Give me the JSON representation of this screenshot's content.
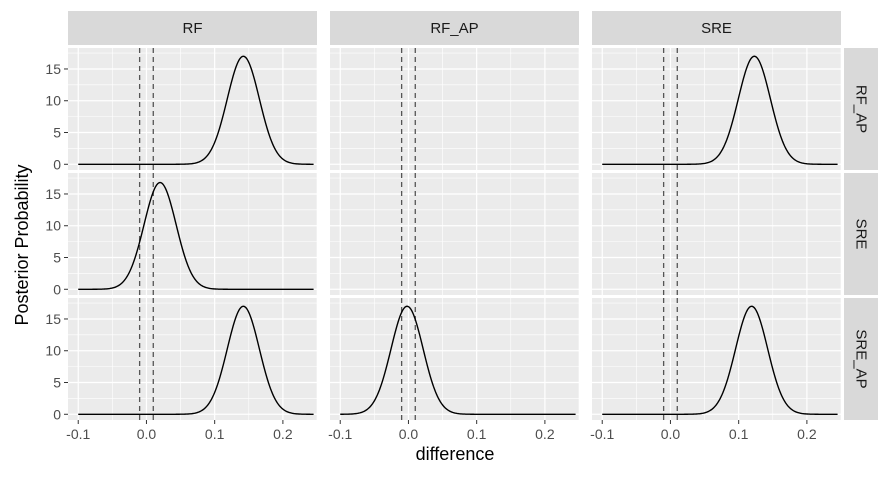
{
  "chart_data": {
    "type": "line",
    "layout": "facet_grid",
    "xlabel": "difference",
    "ylabel": "Posterior Probability",
    "col_facets": [
      "RF",
      "RF_AP",
      "SRE"
    ],
    "row_facets": [
      "RF_AP",
      "SRE",
      "SRE_AP"
    ],
    "xlim": [
      -0.115,
      0.25
    ],
    "ylim": [
      -0.9,
      18.3
    ],
    "x_ticks": [
      -0.1,
      0.0,
      0.1,
      0.2
    ],
    "x_tick_labels": [
      "-0.1",
      "0.0",
      "0.1",
      "0.2"
    ],
    "y_ticks": [
      0,
      5,
      10,
      15
    ],
    "y_tick_labels": [
      "0",
      "5",
      "10",
      "15"
    ],
    "reference_lines": [
      -0.01,
      0.01
    ],
    "reference_line_style": "dashed",
    "density_x_range": [
      -0.1,
      0.245
    ],
    "grid": true,
    "colors": {
      "panel_bg": "#EBEBEB",
      "strip_bg": "#D9D9D9",
      "grid": "#ffffff",
      "line": "#000000",
      "reference": "#555555"
    },
    "panels": [
      {
        "row": "RF_AP",
        "col": "RF",
        "has_density": true,
        "center": 0.142,
        "sd": 0.0235,
        "peak": 17.0
      },
      {
        "row": "RF_AP",
        "col": "RF_AP",
        "has_density": false
      },
      {
        "row": "RF_AP",
        "col": "SRE",
        "has_density": true,
        "center": 0.123,
        "sd": 0.0235,
        "peak": 17.0
      },
      {
        "row": "SRE",
        "col": "RF",
        "has_density": true,
        "center": 0.02,
        "sd": 0.0235,
        "peak": 16.8
      },
      {
        "row": "SRE",
        "col": "RF_AP",
        "has_density": false
      },
      {
        "row": "SRE",
        "col": "SRE",
        "has_density": false
      },
      {
        "row": "SRE_AP",
        "col": "RF",
        "has_density": true,
        "center": 0.142,
        "sd": 0.0235,
        "peak": 17.0
      },
      {
        "row": "SRE_AP",
        "col": "RF_AP",
        "has_density": true,
        "center": -0.002,
        "sd": 0.0235,
        "peak": 17.0
      },
      {
        "row": "SRE_AP",
        "col": "SRE",
        "has_density": true,
        "center": 0.119,
        "sd": 0.0235,
        "peak": 17.0
      }
    ]
  }
}
